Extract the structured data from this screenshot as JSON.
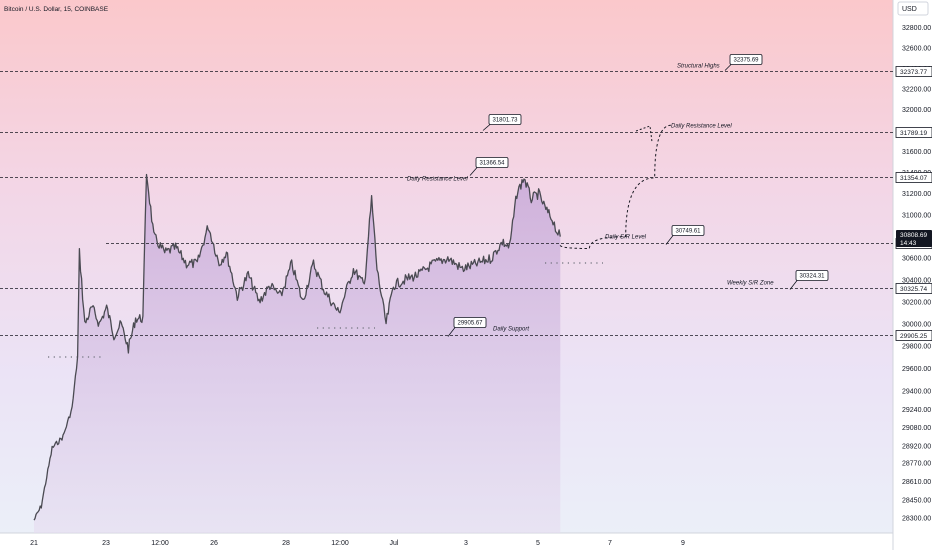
{
  "header": {
    "symbol_title": "Bitcoin / U.S. Dollar, 15, COINBASE"
  },
  "currency": "USD",
  "chart_data": {
    "type": "line",
    "title": "Bitcoin / U.S. Dollar, 15, COINBASE",
    "y_scale": "log",
    "ylim": [
      28200,
      32900
    ],
    "grid": false,
    "y_ticks": [
      28300,
      28450,
      28610,
      28770,
      28920,
      29080,
      29240,
      29400,
      29600,
      29800,
      30000,
      30200,
      30400,
      30600,
      30800,
      31000,
      31200,
      31400,
      31600,
      31800,
      32000,
      32200,
      32400,
      32600,
      32800
    ],
    "x_ticks": [
      "21",
      "23",
      "12:00",
      "26",
      "28",
      "12:00",
      "Jul",
      "3",
      "5",
      "7",
      "9"
    ],
    "price_series": [
      [
        0,
        28280
      ],
      [
        0.2,
        28400
      ],
      [
        0.5,
        28900
      ],
      [
        0.8,
        29000
      ],
      [
        1.05,
        29250
      ],
      [
        1.2,
        29700
      ],
      [
        1.25,
        30650
      ],
      [
        1.4,
        30000
      ],
      [
        1.6,
        30150
      ],
      [
        1.8,
        30000
      ],
      [
        2.0,
        30150
      ],
      [
        2.2,
        29900
      ],
      [
        2.4,
        30000
      ],
      [
        2.6,
        29780
      ],
      [
        2.8,
        30050
      ],
      [
        3.0,
        30050
      ],
      [
        3.1,
        31400
      ],
      [
        3.3,
        30800
      ],
      [
        3.6,
        30650
      ],
      [
        3.9,
        30700
      ],
      [
        4.2,
        30550
      ],
      [
        4.5,
        30550
      ],
      [
        4.8,
        30900
      ],
      [
        5.1,
        30550
      ],
      [
        5.3,
        30650
      ],
      [
        5.6,
        30250
      ],
      [
        5.9,
        30450
      ],
      [
        6.2,
        30200
      ],
      [
        6.5,
        30350
      ],
      [
        6.8,
        30250
      ],
      [
        7.1,
        30550
      ],
      [
        7.4,
        30200
      ],
      [
        7.7,
        30550
      ],
      [
        8.0,
        30300
      ],
      [
        8.4,
        30100
      ],
      [
        8.8,
        30500
      ],
      [
        9.1,
        30350
      ],
      [
        9.3,
        31150
      ],
      [
        9.45,
        30500
      ],
      [
        9.7,
        30000
      ],
      [
        9.9,
        30350
      ],
      [
        10.2,
        30400
      ],
      [
        10.6,
        30450
      ],
      [
        11.0,
        30550
      ],
      [
        11.4,
        30600
      ],
      [
        11.8,
        30500
      ],
      [
        12.2,
        30550
      ],
      [
        12.6,
        30600
      ],
      [
        12.9,
        30750
      ],
      [
        13.1,
        30700
      ],
      [
        13.3,
        31200
      ],
      [
        13.5,
        31350
      ],
      [
        13.7,
        31150
      ],
      [
        13.9,
        31200
      ],
      [
        14.1,
        31050
      ],
      [
        14.3,
        30950
      ],
      [
        14.4,
        30850
      ],
      [
        14.5,
        30800
      ]
    ],
    "forecast_path": [
      [
        14.5,
        30720
      ],
      [
        15.3,
        30690
      ],
      [
        16.3,
        30800
      ],
      [
        17.1,
        31350
      ],
      [
        17.55,
        31850
      ]
    ],
    "levels": [
      {
        "price": 32373.77,
        "label": "Structural Highs",
        "badge": "32375.69",
        "axis_label": "32373.77"
      },
      {
        "price": 31789.19,
        "label": "Daily Resistance Level",
        "badge": "31801.73",
        "axis_label": "31789.19"
      },
      {
        "price": 31354.07,
        "label": "Daily Resistance Level",
        "badge": "31366.54",
        "axis_label": "31354.07"
      },
      {
        "price": 30735.9,
        "label": "Daily S/R Level",
        "badge": "30749.61",
        "axis_label": "30735.90"
      },
      {
        "price": 30325.74,
        "label": "Weekly S/R Zone",
        "badge": "30324.31",
        "axis_label": "30325.74"
      },
      {
        "price": 29905.25,
        "label": "Daily Support",
        "badge": "29905.67",
        "axis_label": "29905.25"
      }
    ],
    "current_price": {
      "value": "30808.69",
      "countdown": "14:43"
    }
  }
}
